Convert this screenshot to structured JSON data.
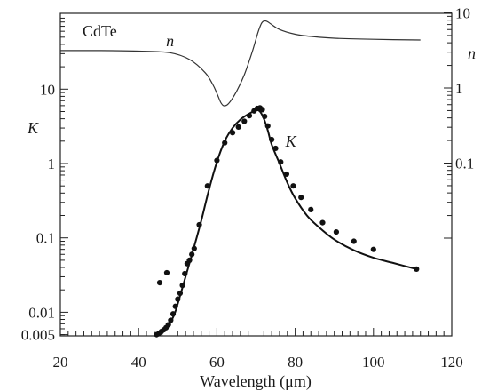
{
  "chart_data": {
    "type": "line",
    "title": "",
    "annotation": "CdTe",
    "xlabel": "Wavelength (μm)",
    "ylabel_left": "K",
    "ylabel_right": "n",
    "xlim": [
      20,
      120
    ],
    "x_ticks": [
      20,
      40,
      60,
      80,
      100,
      120
    ],
    "y_left_scale": "log",
    "y_left_ticks": [
      {
        "value": 0.005,
        "label": "0.005"
      },
      {
        "value": 0.01,
        "label": "0.01"
      },
      {
        "value": 0.1,
        "label": "0.1"
      },
      {
        "value": 1,
        "label": "1"
      },
      {
        "value": 10,
        "label": "10"
      }
    ],
    "y_right_scale": "log",
    "y_right_ticks": [
      {
        "value": 0.1,
        "label": "0.1"
      },
      {
        "value": 1,
        "label": "1"
      },
      {
        "value": 10,
        "label": "10"
      }
    ],
    "grid": false,
    "series": [
      {
        "name": "n",
        "label_x": 47,
        "axis": "right",
        "style": "line",
        "x": [
          20,
          30,
          40,
          48,
          53,
          57,
          59,
          60,
          61,
          61.8,
          63,
          65,
          67,
          69,
          70.5,
          71.5,
          72.5,
          74,
          76,
          80,
          85,
          90,
          100,
          112
        ],
        "y": [
          3.15,
          3.15,
          3.1,
          2.95,
          2.4,
          1.6,
          1.1,
          0.85,
          0.64,
          0.58,
          0.62,
          0.9,
          1.5,
          3.0,
          5.5,
          7.4,
          7.8,
          7.0,
          6.0,
          5.2,
          4.8,
          4.6,
          4.45,
          4.35
        ]
      },
      {
        "name": "K",
        "label_x": 77.5,
        "axis": "left",
        "style": "line",
        "x": [
          45,
          47,
          49,
          50.5,
          52,
          54,
          56,
          58,
          60,
          62,
          64,
          66,
          68,
          70,
          71,
          72,
          73,
          74,
          76,
          78,
          80,
          83,
          86,
          90,
          95,
          100,
          105,
          111
        ],
        "y": [
          0.005,
          0.006,
          0.009,
          0.016,
          0.03,
          0.07,
          0.17,
          0.45,
          1.05,
          2.0,
          3.0,
          3.9,
          4.6,
          5.2,
          5.0,
          4.0,
          2.8,
          1.8,
          1.0,
          0.55,
          0.34,
          0.2,
          0.14,
          0.095,
          0.068,
          0.054,
          0.046,
          0.038
        ]
      },
      {
        "name": "K (data)",
        "axis": "left",
        "style": "points",
        "x": [
          44.6,
          45.2,
          45.8,
          46.4,
          47,
          47.6,
          48.2,
          48.8,
          49.4,
          50,
          50.6,
          51.2,
          51.8,
          52.4,
          53,
          53.6,
          54.2,
          55.5,
          57.6,
          60,
          62,
          64,
          65.5,
          67,
          68.3,
          69.5,
          70.3,
          71,
          71.6,
          72.2,
          73,
          74,
          75,
          76.3,
          77.8,
          79.5,
          81.5,
          84,
          87,
          90.5,
          95,
          100,
          111,
          45.4,
          47.2
        ],
        "y": [
          0.005,
          0.0052,
          0.0055,
          0.0058,
          0.0062,
          0.0068,
          0.0078,
          0.0095,
          0.012,
          0.015,
          0.018,
          0.023,
          0.033,
          0.045,
          0.05,
          0.06,
          0.072,
          0.15,
          0.5,
          1.1,
          1.9,
          2.6,
          3.1,
          3.7,
          4.4,
          5.1,
          5.5,
          5.6,
          5.3,
          4.3,
          3.2,
          2.1,
          1.6,
          1.05,
          0.72,
          0.5,
          0.35,
          0.24,
          0.16,
          0.12,
          0.09,
          0.07,
          0.038,
          0.025,
          0.034
        ]
      }
    ]
  }
}
